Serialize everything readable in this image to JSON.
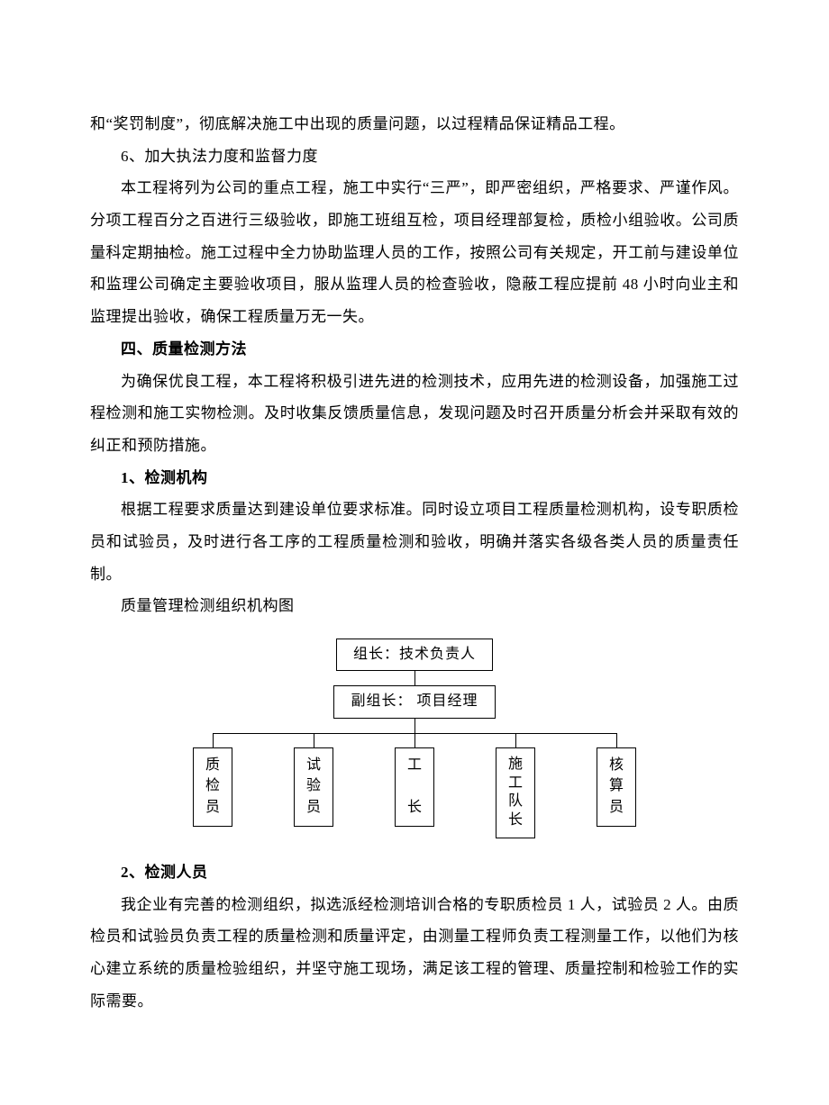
{
  "paragraphs": {
    "p0": "和“奖罚制度”，彻底解决施工中出现的质量问题，以过程精品保证精品工程。",
    "p1": "6、加大执法力度和监督力度",
    "p2": "本工程将列为公司的重点工程，施工中实行“三严”，即严密组织，严格要求、严谨作风。分项工程百分之百进行三级验收，即施工班组互检，项目经理部复检，质检小组验收。公司质量科定期抽检。施工过程中全力协助监理人员的工作，按照公司有关规定，开工前与建设单位和监理公司确定主要验收项目，服从监理人员的检查验收，隐蔽工程应提前 48 小时向业主和监理提出验收，确保工程质量万无一失。",
    "h4": "四、质量检测方法",
    "p3": "为确保优良工程，本工程将积极引进先进的检测技术，应用先进的检测设备，加强施工过程检测和施工实物检测。及时收集反馈质量信息，发现问题及时召开质量分析会并采取有效的纠正和预防措施。",
    "h4_1": "1、检测机构",
    "p4": "根据工程要求质量达到建设单位要求标准。同时设立项目工程质量检测机构，设专职质检员和试验员，及时进行各工序的工程质量检测和验收，明确并落实各级各类人员的质量责任制。",
    "p5": "质量管理检测组织机构图",
    "h4_2": "2、检测人员",
    "p6": "我企业有完善的检测组织，拟选派经检测培训合格的专职质检员 1 人，试验员 2 人。由质检员和试验员负责工程的质量检测和质量评定，由测量工程师负责工程测量工作，以他们为核心建立系统的质量检验组织，并坚守施工现场，满足该工程的管理、质量控制和检验工作的实际需要。"
  },
  "chart": {
    "type": "org-chart",
    "background_color": "#ffffff",
    "border_color": "#000000",
    "font_size": 16,
    "root": "组长：技术负责人",
    "sub": "副组长：  项目经理",
    "leaves": [
      {
        "chars": [
          "质",
          "检",
          "员"
        ]
      },
      {
        "chars": [
          "试",
          "验",
          "员"
        ]
      },
      {
        "chars": [
          "工",
          "",
          "长"
        ]
      },
      {
        "chars": [
          "施",
          "工",
          "队",
          "长"
        ]
      },
      {
        "chars": [
          "核",
          "算",
          "员"
        ]
      }
    ]
  }
}
